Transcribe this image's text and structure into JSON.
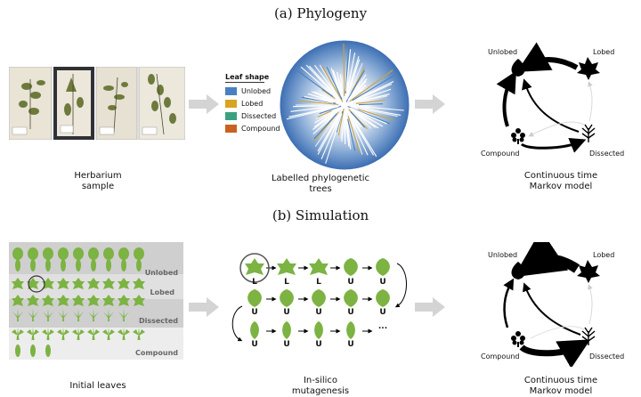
{
  "titles": {
    "phylogeny": "(a) Phylogeny",
    "simulation": "(b) Simulation"
  },
  "panel_a": {
    "herbarium_caption": [
      "Herbarium",
      "sample"
    ],
    "tree_caption": [
      "Labelled phylogenetic",
      "trees"
    ],
    "markov_caption": [
      "Continuous time",
      "Markov model"
    ],
    "legend": {
      "title": "Leaf shape",
      "items": [
        {
          "label": "Unlobed",
          "color": "#4a7fc1"
        },
        {
          "label": "Lobed",
          "color": "#d9a420"
        },
        {
          "label": "Dissected",
          "color": "#3aa17e"
        },
        {
          "label": "Compound",
          "color": "#c9621e"
        }
      ]
    },
    "markov_nodes": {
      "unlobed": "Unlobed",
      "lobed": "Lobed",
      "dissected": "Dissected",
      "compound": "Compound"
    }
  },
  "panel_b": {
    "initial_caption": [
      "Initial leaves"
    ],
    "mutagenesis_caption": [
      "In-silico",
      "mutagenesis"
    ],
    "markov_caption": [
      "Continuous time",
      "Markov model"
    ],
    "band_labels": [
      "Unlobed",
      "Lobed",
      "Dissected",
      "Compound"
    ],
    "chain_labels": {
      "row1": [
        "L",
        "L",
        "L",
        "U",
        "U"
      ],
      "row2": [
        "U",
        "U",
        "U",
        "U",
        "U"
      ],
      "row3": [
        "U",
        "U",
        "U",
        "U",
        "..."
      ]
    },
    "markov_nodes": {
      "unlobed": "Unlobed",
      "lobed": "Lobed",
      "dissected": "Dissected",
      "compound": "Compound"
    }
  },
  "colors": {
    "leaf_green": "#7cb342",
    "leaf_dark": "#4e8a2a",
    "arrow_grey": "#d4d4d4",
    "band_grey": "#cfcfcf"
  }
}
